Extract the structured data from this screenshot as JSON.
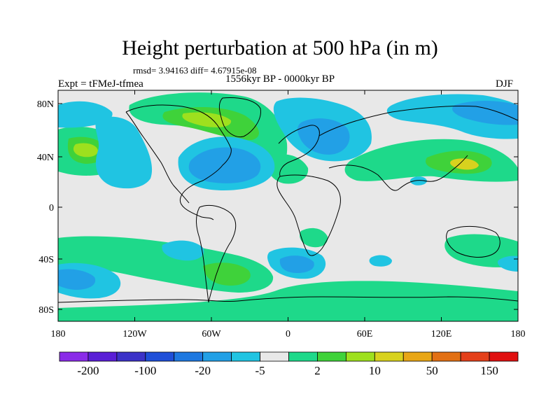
{
  "title": "Height perturbation at 500 hPa (in m)",
  "stats": "rmsd= 3.94163 diff= 4.67915e-08",
  "experiment": "Expt = tFMeJ-tfmea",
  "period": "1556kyr BP - 0000kyr BP",
  "season": "DJF",
  "y_ticks": [
    "80N",
    "40N",
    "0",
    "40S",
    "80S"
  ],
  "x_ticks": [
    "180",
    "120W",
    "60W",
    "0",
    "60E",
    "120E",
    "180"
  ],
  "colorbar": {
    "colors": [
      "#8a2be8",
      "#5a1fd6",
      "#3c32c8",
      "#1f4fd8",
      "#1e78e0",
      "#22a0e6",
      "#20c4e2",
      "#e8e8e8",
      "#1ed98a",
      "#3fd23a",
      "#9ee01e",
      "#d8d21e",
      "#e8a616",
      "#e27014",
      "#e4401a",
      "#e01010"
    ],
    "labels": [
      "-200",
      "-100",
      "-20",
      "-5",
      "2",
      "10",
      "50",
      "150"
    ],
    "label_positions": [
      1,
      3,
      5,
      7,
      9,
      11,
      13,
      15
    ]
  },
  "field_colors": {
    "background": "#e8e8e8",
    "neg_light": "#20c4e2",
    "neg_mid": "#22a0e6",
    "pos_light": "#1ed98a",
    "pos_mid": "#3fd23a",
    "pos_strong": "#9ee01e",
    "pos_max": "#d8d21e"
  }
}
